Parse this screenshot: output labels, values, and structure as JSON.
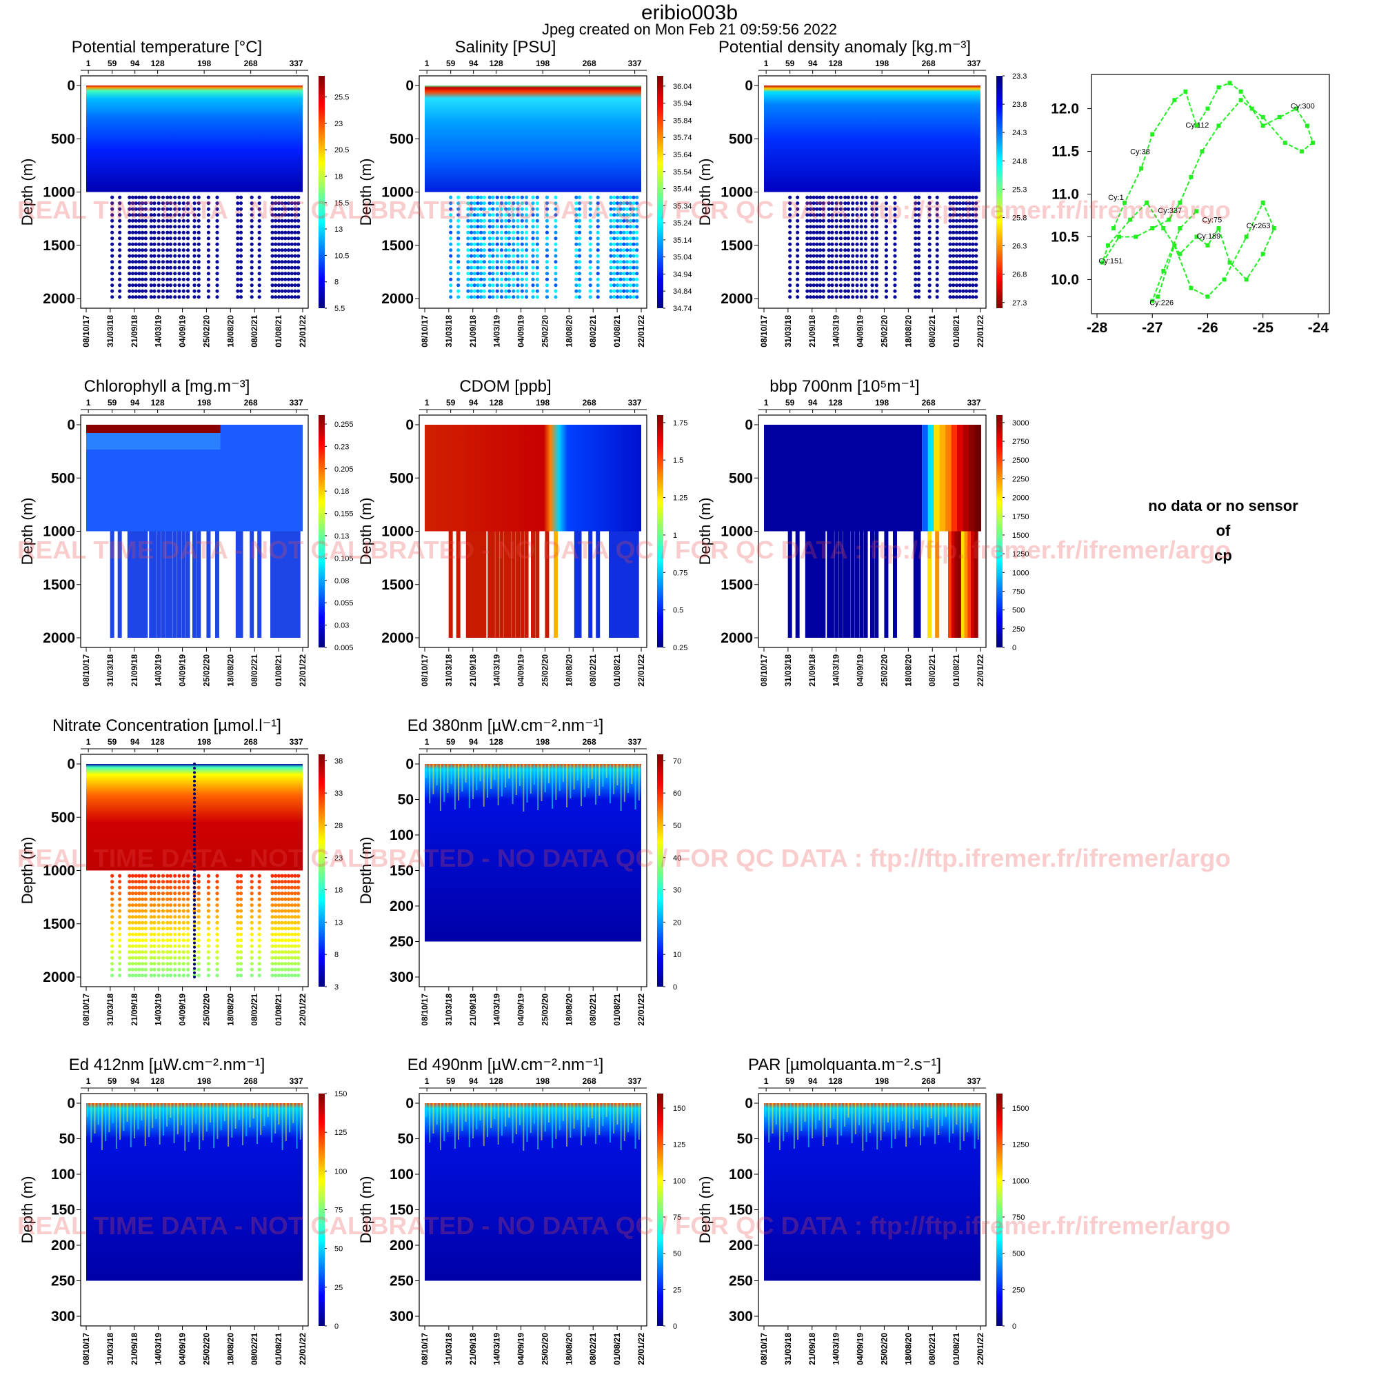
{
  "header": {
    "title": "eribio003b",
    "subtitle": "Jpeg created on  Mon Feb 21 09:59:56 2022"
  },
  "watermark": "REAL TIME DATA - NOT CALIBRATED - NO DATA QC  /  FOR QC DATA : ftp://ftp.ifremer.fr/ifremer/argo",
  "nodata": {
    "line1": "no data or no sensor",
    "line2": "of",
    "line3": "cp"
  },
  "shared_axes": {
    "ylabel": "Depth (m)",
    "cycles_top": [
      "1",
      "59",
      "94",
      "128",
      "198",
      "268",
      "337"
    ],
    "dates_bottom": [
      "08/10/17",
      "31/03/18",
      "21/09/18",
      "14/03/19",
      "04/09/19",
      "25/02/20",
      "18/08/20",
      "08/02/21",
      "01/08/21",
      "22/01/22"
    ],
    "deep_ticks": [
      "0",
      "500",
      "1000",
      "1500",
      "2000"
    ],
    "shallow_ticks": [
      "0",
      "50",
      "100",
      "150",
      "200",
      "250",
      "300"
    ]
  },
  "colors": {
    "jet_scale": [
      "#00007f",
      "#0000ff",
      "#007fff",
      "#00ffff",
      "#7fff7f",
      "#ffff00",
      "#ff7f00",
      "#ff0000",
      "#7f0000"
    ],
    "trajectory": "#22ee22",
    "watermark": "#e84a4a"
  },
  "chart_data": [
    {
      "type": "heatmap",
      "title": "Potential temperature [°C]",
      "ylabel": "Depth (m)",
      "ylim": [
        0,
        2000
      ],
      "colorbar": [
        "5.5",
        "8",
        "10.5",
        "13",
        "15.5",
        "18",
        "20.5",
        "23",
        "25.5"
      ],
      "range": [
        5.5,
        27.5
      ]
    },
    {
      "type": "heatmap",
      "title": "Salinity [PSU]",
      "ylabel": "Depth (m)",
      "ylim": [
        0,
        2000
      ],
      "colorbar": [
        "34.74",
        "34.84",
        "34.94",
        "35.04",
        "35.14",
        "35.24",
        "35.34",
        "35.44",
        "35.54",
        "35.64",
        "35.74",
        "35.84",
        "35.94",
        "36.04"
      ],
      "range": [
        34.74,
        36.1
      ]
    },
    {
      "type": "heatmap",
      "title": "Potential density anomaly [kg.m⁻³]",
      "ylabel": "Depth (m)",
      "ylim": [
        0,
        2000
      ],
      "colorbar": [
        "23.3",
        "23.8",
        "24.3",
        "24.8",
        "25.3",
        "25.8",
        "26.3",
        "26.8",
        "27.3"
      ],
      "range": [
        23.3,
        27.4
      ],
      "reversed": true
    },
    {
      "type": "scatter",
      "title": "",
      "x": [
        -27.7,
        -27.5,
        -27.2,
        -27.0,
        -26.6,
        -26.4,
        -26.2,
        -26.0,
        -25.8,
        -25.6,
        -25.4,
        -25.2,
        -25.0,
        -24.7,
        -24.4,
        -24.2,
        -24.1,
        -24.3,
        -24.6,
        -25.0,
        -25.4,
        -25.8,
        -26.1,
        -26.3,
        -26.5,
        -26.7,
        -27.0,
        -27.3,
        -27.6,
        -27.9,
        -27.8,
        -27.4,
        -27.1,
        -26.8,
        -26.5,
        -26.2,
        -26.0,
        -25.8,
        -25.6,
        -25.3,
        -25.0,
        -24.8,
        -25.0,
        -25.3,
        -25.7,
        -26.0,
        -26.3,
        -26.6,
        -26.9,
        -27.0,
        -26.8,
        -26.5,
        -26.2
      ],
      "y": [
        10.6,
        10.9,
        11.3,
        11.7,
        12.1,
        12.2,
        11.8,
        12.0,
        12.25,
        12.3,
        12.2,
        12.0,
        11.8,
        11.9,
        12.0,
        11.8,
        11.6,
        11.5,
        11.6,
        11.9,
        12.1,
        11.8,
        11.5,
        11.2,
        10.9,
        10.7,
        10.6,
        10.5,
        10.5,
        10.2,
        10.4,
        10.7,
        10.9,
        10.6,
        10.3,
        10.5,
        10.4,
        10.6,
        10.2,
        10.0,
        10.3,
        10.6,
        10.9,
        10.5,
        10.0,
        9.8,
        9.9,
        10.4,
        9.8,
        9.75,
        10.1,
        10.6,
        10.8
      ],
      "labels": [
        {
          "text": "Cy:1",
          "x": -27.8,
          "y": 10.93
        },
        {
          "text": "Cy:38",
          "x": -27.4,
          "y": 11.47
        },
        {
          "text": "Cy:112",
          "x": -26.4,
          "y": 11.78
        },
        {
          "text": "Cy:300",
          "x": -24.5,
          "y": 12.0
        },
        {
          "text": "Cy:337",
          "x": -26.9,
          "y": 10.78
        },
        {
          "text": "Cy:75",
          "x": -26.1,
          "y": 10.67
        },
        {
          "text": "Cy:263",
          "x": -25.3,
          "y": 10.6
        },
        {
          "text": "Cy:189",
          "x": -26.2,
          "y": 10.48
        },
        {
          "text": "Cy:151",
          "x": -27.97,
          "y": 10.19
        },
        {
          "text": "Cy:226",
          "x": -27.05,
          "y": 9.7
        }
      ],
      "xticks": [
        "-28",
        "-27",
        "-26",
        "-25",
        "-24"
      ],
      "yticks": [
        "10.0",
        "10.5",
        "11.0",
        "11.5",
        "12.0"
      ],
      "xlim": [
        -28.1,
        -23.8
      ],
      "ylim": [
        9.6,
        12.4
      ]
    },
    {
      "type": "heatmap",
      "title": "Chlorophyll a [mg.m⁻³]",
      "ylabel": "Depth (m)",
      "ylim": [
        0,
        2000
      ],
      "colorbar": [
        "0.005",
        "0.03",
        "0.055",
        "0.08",
        "0.105",
        "0.13",
        "0.155",
        "0.18",
        "0.205",
        "0.23",
        "0.255"
      ],
      "range": [
        0.005,
        0.265
      ]
    },
    {
      "type": "heatmap",
      "title": "CDOM  [ppb]",
      "ylabel": "Depth (m)",
      "ylim": [
        0,
        2000
      ],
      "colorbar": [
        "0.25",
        "0.5",
        "0.75",
        "1",
        "1.25",
        "1.5",
        "1.75"
      ],
      "range": [
        0.25,
        1.8
      ]
    },
    {
      "type": "heatmap",
      "title": "bbp 700nm [10⁵m⁻¹]",
      "ylabel": "Depth (m)",
      "ylim": [
        0,
        2000
      ],
      "colorbar": [
        "0",
        "250",
        "500",
        "750",
        "1000",
        "1250",
        "1500",
        "1750",
        "2000",
        "2250",
        "2500",
        "2750",
        "3000"
      ],
      "range": [
        0,
        3100
      ]
    },
    {
      "type": "heatmap",
      "title": "Nitrate Concentration [µmol.l⁻¹]",
      "ylabel": "Depth (m)",
      "ylim": [
        0,
        2000
      ],
      "colorbar": [
        "3",
        "8",
        "13",
        "18",
        "23",
        "28",
        "33",
        "38"
      ],
      "range": [
        3,
        39
      ]
    },
    {
      "type": "heatmap",
      "title": "Ed 380nm [µW.cm⁻².nm⁻¹]",
      "ylabel": "Depth (m)",
      "ylim": [
        0,
        300
      ],
      "colorbar": [
        "0",
        "10",
        "20",
        "30",
        "40",
        "50",
        "60",
        "70"
      ],
      "range": [
        0,
        72
      ]
    },
    {
      "type": "heatmap",
      "title": "Ed 412nm [µW.cm⁻².nm⁻¹]",
      "ylabel": "Depth (m)",
      "ylim": [
        0,
        300
      ],
      "colorbar": [
        "0",
        "25",
        "50",
        "75",
        "100",
        "125",
        "150"
      ],
      "range": [
        0,
        150
      ]
    },
    {
      "type": "heatmap",
      "title": "Ed 490nm [µW.cm⁻².nm⁻¹]",
      "ylabel": "Depth (m)",
      "ylim": [
        0,
        300
      ],
      "colorbar": [
        "0",
        "25",
        "50",
        "75",
        "100",
        "125",
        "150"
      ],
      "range": [
        0,
        160
      ]
    },
    {
      "type": "heatmap",
      "title": "PAR [µmolquanta.m⁻².s⁻¹]",
      "ylabel": "Depth (m)",
      "ylim": [
        0,
        300
      ],
      "colorbar": [
        "0",
        "250",
        "500",
        "750",
        "1000",
        "1250",
        "1500"
      ],
      "range": [
        0,
        1600
      ]
    }
  ]
}
